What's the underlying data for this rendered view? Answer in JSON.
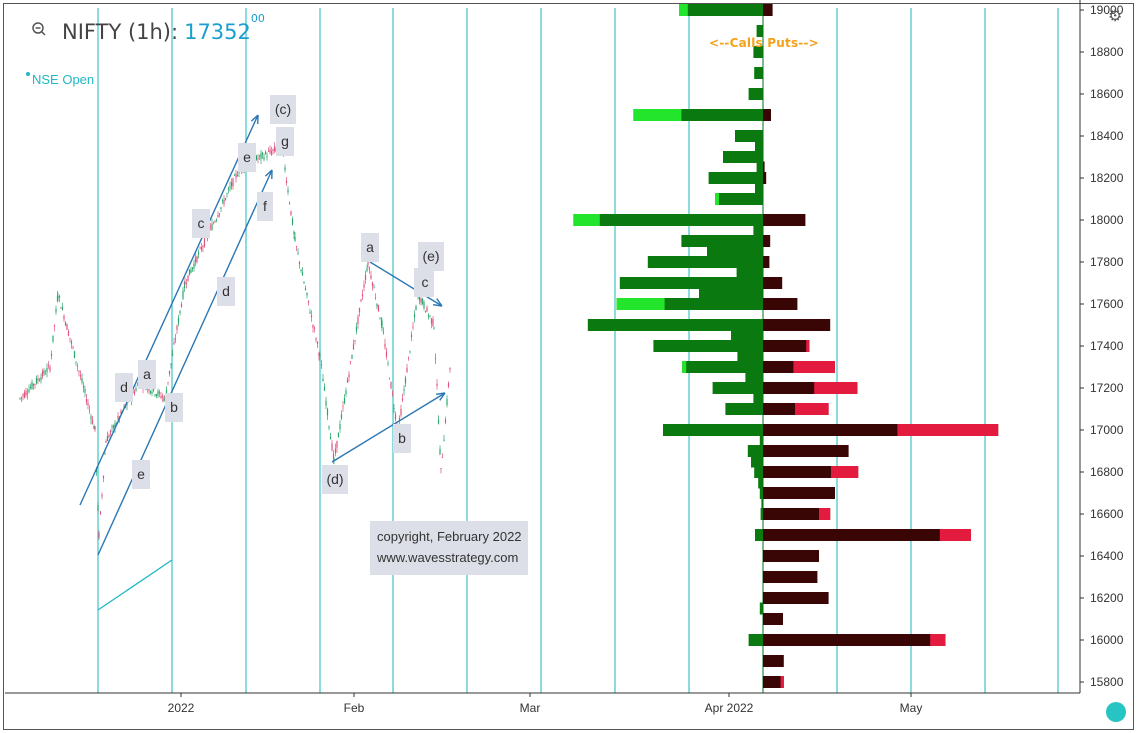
{
  "header": {
    "symbol": "NIFTY (1h):",
    "price_main": "17352",
    "price_decimals": "00",
    "status": "NSE Open"
  },
  "legend_calls_puts": "<--Calls   Puts-->",
  "copyright": {
    "line1": "copyright, February 2022",
    "line2": "www.wavesstrategy.com"
  },
  "icons": {
    "zoom": "magnifier-minus-icon",
    "settings": "gear-icon",
    "badge": "teal-circle-icon"
  },
  "colors": {
    "bg": "#ffffff",
    "calls_dark": "#0a7a10",
    "calls_light": "#23e52b",
    "puts_dark": "#3a0505",
    "puts_light": "#e31b3f",
    "vgrid": "#3cc4c9",
    "trend": "#2a77b4",
    "price_text": "#1a9fd0",
    "legend_text": "#f2a21b"
  },
  "wave_labels": [
    {
      "text": "(c)"
    },
    {
      "text": "g"
    },
    {
      "text": "e"
    },
    {
      "text": "f"
    },
    {
      "text": "c"
    },
    {
      "text": "d"
    },
    {
      "text": "d"
    },
    {
      "text": "a"
    },
    {
      "text": "b"
    },
    {
      "text": "e"
    },
    {
      "text": "c"
    },
    {
      "text": "a"
    },
    {
      "text": "(e)"
    },
    {
      "text": "c"
    },
    {
      "text": "b"
    },
    {
      "text": "(d)"
    }
  ],
  "chart_data": {
    "type": "bar",
    "title": "NIFTY (1h)",
    "x_ticks": [
      "2022",
      "Feb",
      "Mar",
      "Apr 2022",
      "May"
    ],
    "y_ticks": [
      15800,
      16000,
      16200,
      16400,
      16600,
      16800,
      17000,
      17200,
      17400,
      17600,
      17800,
      18000,
      18200,
      18400,
      18600,
      18800,
      19000
    ],
    "ylim": [
      15750,
      19000
    ],
    "price_series": {
      "type": "candlestick",
      "last": 17352,
      "swing_points": [
        17150,
        17300,
        17650,
        17000,
        16500,
        16950,
        17230,
        17150,
        17700,
        18250,
        18350,
        17900,
        17350,
        16850,
        17800,
        17500,
        16990,
        17650,
        17500,
        16800,
        17352
      ]
    },
    "option_oi": {
      "strikes": [
        19000,
        18950,
        18900,
        18850,
        18800,
        18750,
        18700,
        18650,
        18600,
        18550,
        18500,
        18450,
        18400,
        18350,
        18300,
        18250,
        18200,
        18150,
        18100,
        18050,
        18000,
        17950,
        17900,
        17850,
        17800,
        17750,
        17700,
        17650,
        17600,
        17550,
        17500,
        17450,
        17400,
        17350,
        17300,
        17250,
        17200,
        17150,
        17100,
        17050,
        17000,
        16950,
        16900,
        16850,
        16800,
        16750,
        16700,
        16650,
        16600,
        16550,
        16500,
        16450,
        16400,
        16350,
        16300,
        16250,
        16200,
        16150,
        16100,
        16050,
        16000,
        15950,
        15900,
        15850,
        15800,
        15750
      ],
      "calls_total": [
        105,
        0,
        8,
        0,
        12,
        0,
        11,
        0,
        18,
        0,
        162,
        0,
        35,
        10,
        50,
        8,
        68,
        10,
        60,
        0,
        237,
        12,
        102,
        70,
        144,
        33,
        179,
        80,
        183,
        0,
        219,
        40,
        137,
        32,
        101,
        22,
        63,
        12,
        47,
        0,
        125,
        4,
        19,
        15,
        11,
        6,
        4,
        2,
        3,
        0,
        10,
        0,
        0,
        0,
        0,
        0,
        0,
        4,
        0,
        0,
        18,
        0,
        0,
        0,
        0,
        0
      ],
      "calls_change": [
        11,
        0,
        0,
        0,
        0,
        0,
        0,
        0,
        0,
        0,
        60,
        0,
        0,
        0,
        0,
        0,
        0,
        0,
        5,
        0,
        33,
        0,
        0,
        0,
        0,
        0,
        0,
        0,
        60,
        0,
        0,
        0,
        0,
        0,
        5,
        0,
        0,
        0,
        0,
        0,
        0,
        0,
        0,
        0,
        0,
        0,
        0,
        0,
        0,
        0,
        0,
        0,
        0,
        0,
        0,
        0,
        0,
        0,
        0,
        0,
        0,
        0,
        0,
        0,
        0,
        0
      ],
      "puts_total": [
        12,
        0,
        0,
        0,
        0,
        0,
        0,
        0,
        0,
        0,
        10,
        0,
        0,
        0,
        0,
        2,
        4,
        0,
        0,
        0,
        53,
        0,
        9,
        0,
        8,
        0,
        24,
        0,
        43,
        0,
        84,
        0,
        58,
        0,
        90,
        0,
        118,
        0,
        82,
        0,
        294,
        0,
        107,
        0,
        119,
        0,
        90,
        0,
        84,
        0,
        260,
        0,
        70,
        0,
        68,
        0,
        82,
        0,
        25,
        0,
        228,
        0,
        26,
        0,
        26,
        0
      ],
      "puts_change": [
        0,
        0,
        0,
        0,
        0,
        0,
        0,
        0,
        0,
        0,
        0,
        0,
        0,
        0,
        0,
        0,
        0,
        0,
        0,
        0,
        0,
        0,
        0,
        0,
        0,
        0,
        0,
        0,
        0,
        0,
        0,
        0,
        4,
        0,
        52,
        0,
        54,
        0,
        42,
        0,
        126,
        0,
        0,
        0,
        34,
        0,
        0,
        0,
        14,
        0,
        39,
        0,
        0,
        0,
        0,
        0,
        0,
        0,
        0,
        0,
        19,
        0,
        0,
        0,
        4,
        0
      ]
    }
  }
}
